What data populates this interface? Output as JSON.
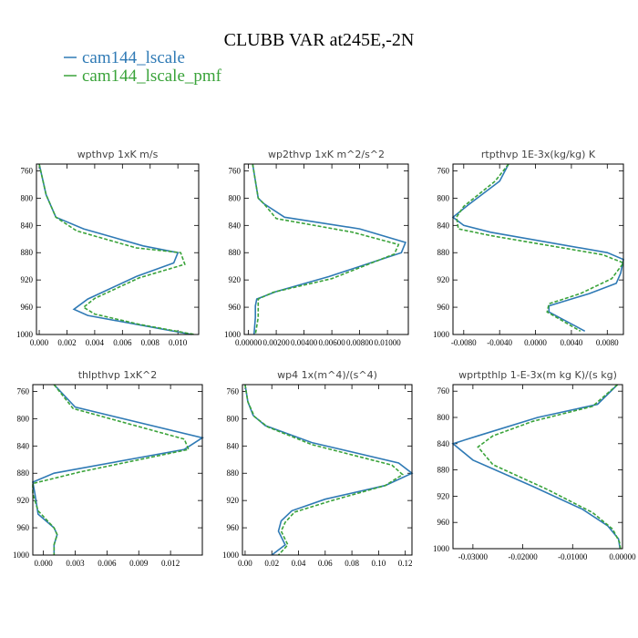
{
  "figure": {
    "title": "CLUBB VAR at245E,-2N",
    "legend": [
      {
        "label": "cam144_lscale",
        "color": "#2f7ab5",
        "style": "solid"
      },
      {
        "label": "cam144_lscale_pmf",
        "color": "#3aa33a",
        "style": "dashed"
      }
    ]
  },
  "chart_data": [
    {
      "type": "line",
      "title": "wpthvp  1xK m/s",
      "ylim": [
        1000,
        750
      ],
      "xlim": [
        -0.0002,
        0.0115
      ],
      "x_ticks": [
        "0.000",
        "0.002",
        "0.004",
        "0.006",
        "0.008",
        "0.010"
      ],
      "x_tick_values": [
        0,
        0.002,
        0.004,
        0.006,
        0.008,
        0.01
      ],
      "y_ticks": [
        "760",
        "800",
        "840",
        "880",
        "920",
        "960",
        "1000"
      ],
      "y_tick_values": [
        760,
        800,
        840,
        880,
        920,
        960,
        1000
      ],
      "series": [
        {
          "name": "cam144_lscale",
          "points": [
            [
              0.0,
              750
            ],
            [
              0.0005,
              795
            ],
            [
              0.0012,
              828
            ],
            [
              0.0032,
              845
            ],
            [
              0.0075,
              870
            ],
            [
              0.01,
              880
            ],
            [
              0.0097,
              895
            ],
            [
              0.007,
              915
            ],
            [
              0.0035,
              948
            ],
            [
              0.0025,
              963
            ],
            [
              0.0035,
              972
            ],
            [
              0.007,
              985
            ],
            [
              0.011,
              1000
            ]
          ]
        },
        {
          "name": "cam144_lscale_pmf",
          "points": [
            [
              0.0,
              750
            ],
            [
              0.0005,
              795
            ],
            [
              0.0012,
              828
            ],
            [
              0.0027,
              848
            ],
            [
              0.007,
              873
            ],
            [
              0.0102,
              880
            ],
            [
              0.0105,
              897
            ],
            [
              0.0072,
              917
            ],
            [
              0.004,
              947
            ],
            [
              0.0032,
              960
            ],
            [
              0.004,
              970
            ],
            [
              0.0072,
              985
            ],
            [
              0.0112,
              1000
            ]
          ]
        }
      ]
    },
    {
      "type": "line",
      "title": "wp2thvp  1xK m^2/s^2",
      "ylim": [
        1000,
        750
      ],
      "xlim": [
        -0.0003,
        0.0115
      ],
      "x_ticks": [
        "0.00000",
        "0.00200",
        "0.00400",
        "0.00600",
        "0.00800",
        "0.01000"
      ],
      "x_tick_values": [
        0,
        0.002,
        0.004,
        0.006,
        0.008,
        0.01
      ],
      "y_ticks": [
        "760",
        "800",
        "840",
        "880",
        "920",
        "960",
        "1000"
      ],
      "y_tick_values": [
        760,
        800,
        840,
        880,
        920,
        960,
        1000
      ],
      "series": [
        {
          "name": "cam144_lscale",
          "points": [
            [
              0.0003,
              750
            ],
            [
              0.0007,
              800
            ],
            [
              0.0011,
              808
            ],
            [
              0.0026,
              828
            ],
            [
              0.008,
              845
            ],
            [
              0.0113,
              865
            ],
            [
              0.011,
              880
            ],
            [
              0.0058,
              915
            ],
            [
              0.002,
              937
            ],
            [
              0.0006,
              948
            ],
            [
              0.0005,
              958
            ],
            [
              0.0005,
              975
            ],
            [
              0.0004,
              1000
            ]
          ]
        },
        {
          "name": "cam144_lscale_pmf",
          "points": [
            [
              0.0003,
              750
            ],
            [
              0.0007,
              800
            ],
            [
              0.0011,
              808
            ],
            [
              0.002,
              830
            ],
            [
              0.0075,
              850
            ],
            [
              0.0108,
              868
            ],
            [
              0.0105,
              882
            ],
            [
              0.006,
              918
            ],
            [
              0.0018,
              938
            ],
            [
              0.0007,
              948
            ],
            [
              0.0007,
              958
            ],
            [
              0.0007,
              975
            ],
            [
              0.0005,
              1000
            ]
          ]
        }
      ]
    },
    {
      "type": "line",
      "title": "rtpthvp  1E-3x(kg/kg) K",
      "ylim": [
        1000,
        750
      ],
      "xlim": [
        -0.0092,
        0.0098
      ],
      "x_ticks": [
        "-0.0080",
        "-0.0040",
        "0.0000",
        "0.0040",
        "0.0080"
      ],
      "x_tick_values": [
        -0.008,
        -0.004,
        0,
        0.004,
        0.008
      ],
      "y_ticks": [
        "760",
        "800",
        "840",
        "880",
        "920",
        "960",
        "1000"
      ],
      "y_tick_values": [
        760,
        800,
        840,
        880,
        920,
        960,
        1000
      ],
      "series": [
        {
          "name": "cam144_lscale",
          "points": [
            [
              -0.003,
              750
            ],
            [
              -0.004,
              775
            ],
            [
              -0.0075,
              810
            ],
            [
              -0.0092,
              828
            ],
            [
              -0.008,
              840
            ],
            [
              -0.005,
              850
            ],
            [
              0.008,
              880
            ],
            [
              0.0098,
              890
            ],
            [
              0.0095,
              910
            ],
            [
              0.009,
              925
            ],
            [
              0.006,
              940
            ],
            [
              0.0015,
              958
            ],
            [
              0.0015,
              967
            ],
            [
              0.0055,
              995
            ]
          ]
        },
        {
          "name": "cam144_lscale_pmf",
          "points": [
            [
              -0.003,
              750
            ],
            [
              -0.0045,
              775
            ],
            [
              -0.008,
              812
            ],
            [
              -0.0088,
              828
            ],
            [
              -0.0086,
              845
            ],
            [
              -0.005,
              855
            ],
            [
              0.0075,
              883
            ],
            [
              0.0098,
              895
            ],
            [
              0.0085,
              918
            ],
            [
              0.005,
              940
            ],
            [
              0.0015,
              955
            ],
            [
              0.0013,
              967
            ],
            [
              0.005,
              995
            ]
          ]
        }
      ]
    },
    {
      "type": "line",
      "title": "thlpthvp  1xK^2",
      "ylim": [
        1000,
        750
      ],
      "xlim": [
        -0.001,
        0.015
      ],
      "x_ticks": [
        "0.000",
        "0.003",
        "0.006",
        "0.009",
        "0.012"
      ],
      "x_tick_values": [
        0,
        0.003,
        0.006,
        0.009,
        0.012
      ],
      "y_ticks": [
        "760",
        "800",
        "840",
        "880",
        "920",
        "960",
        "1000"
      ],
      "y_tick_values": [
        760,
        800,
        840,
        880,
        920,
        960,
        1000
      ],
      "series": [
        {
          "name": "cam144_lscale",
          "points": [
            [
              0.001,
              750
            ],
            [
              0.003,
              783
            ],
            [
              0.015,
              828
            ],
            [
              0.0133,
              845
            ],
            [
              0.001,
              880
            ],
            [
              -0.001,
              893
            ],
            [
              -0.0008,
              910
            ],
            [
              -0.0005,
              940
            ],
            [
              0.001,
              960
            ],
            [
              0.0013,
              970
            ],
            [
              0.001,
              985
            ],
            [
              0.001,
              1000
            ]
          ]
        },
        {
          "name": "cam144_lscale_pmf",
          "points": [
            [
              0.001,
              750
            ],
            [
              0.0028,
              785
            ],
            [
              0.0133,
              830
            ],
            [
              0.0137,
              845
            ],
            [
              0.0035,
              878
            ],
            [
              -0.001,
              895
            ],
            [
              -0.001,
              910
            ],
            [
              -0.0005,
              935
            ],
            [
              0.001,
              960
            ],
            [
              0.0013,
              970
            ],
            [
              0.001,
              985
            ],
            [
              0.001,
              1000
            ]
          ]
        }
      ]
    },
    {
      "type": "line",
      "title": "wp4  1x(m^4)/(s^4)",
      "ylim": [
        1000,
        750
      ],
      "xlim": [
        -0.002,
        0.125
      ],
      "x_ticks": [
        "0.00",
        "0.02",
        "0.04",
        "0.06",
        "0.08",
        "0.10",
        "0.12"
      ],
      "x_tick_values": [
        0,
        0.02,
        0.04,
        0.06,
        0.08,
        0.1,
        0.12
      ],
      "y_ticks": [
        "760",
        "800",
        "840",
        "880",
        "920",
        "960",
        "1000"
      ],
      "y_tick_values": [
        760,
        800,
        840,
        880,
        920,
        960,
        1000
      ],
      "series": [
        {
          "name": "cam144_lscale",
          "points": [
            [
              0.0,
              750
            ],
            [
              0.002,
              775
            ],
            [
              0.006,
              795
            ],
            [
              0.015,
              810
            ],
            [
              0.05,
              835
            ],
            [
              0.115,
              865
            ],
            [
              0.125,
              880
            ],
            [
              0.105,
              898
            ],
            [
              0.06,
              918
            ],
            [
              0.035,
              935
            ],
            [
              0.027,
              950
            ],
            [
              0.025,
              965
            ],
            [
              0.03,
              985
            ],
            [
              0.02,
              1000
            ]
          ]
        },
        {
          "name": "cam144_lscale_pmf",
          "points": [
            [
              0.0,
              750
            ],
            [
              0.002,
              775
            ],
            [
              0.007,
              797
            ],
            [
              0.017,
              812
            ],
            [
              0.05,
              838
            ],
            [
              0.11,
              868
            ],
            [
              0.118,
              882
            ],
            [
              0.105,
              898
            ],
            [
              0.065,
              920
            ],
            [
              0.037,
              937
            ],
            [
              0.03,
              952
            ],
            [
              0.027,
              965
            ],
            [
              0.032,
              985
            ],
            [
              0.025,
              1000
            ]
          ]
        }
      ]
    },
    {
      "type": "line",
      "title": "wprtpthlp  1-E-3x(m kg K)/(s kg)",
      "ylim": [
        1000,
        750
      ],
      "xlim": [
        -0.034,
        0.0
      ],
      "x_ticks": [
        "-0.03000",
        "-0.02000",
        "-0.01000",
        "0.00000"
      ],
      "x_tick_values": [
        -0.03,
        -0.02,
        -0.01,
        0
      ],
      "y_ticks": [
        "760",
        "800",
        "840",
        "880",
        "920",
        "960",
        "1000"
      ],
      "y_tick_values": [
        760,
        800,
        840,
        880,
        920,
        960,
        1000
      ],
      "series": [
        {
          "name": "cam144_lscale",
          "points": [
            [
              -0.001,
              750
            ],
            [
              -0.005,
              780
            ],
            [
              -0.017,
              800
            ],
            [
              -0.029,
              828
            ],
            [
              -0.034,
              840
            ],
            [
              -0.03,
              865
            ],
            [
              -0.018,
              905
            ],
            [
              -0.008,
              940
            ],
            [
              -0.003,
              965
            ],
            [
              -0.0008,
              985
            ],
            [
              -0.0005,
              1000
            ]
          ]
        },
        {
          "name": "cam144_lscale_pmf",
          "points": [
            [
              -0.001,
              750
            ],
            [
              -0.006,
              783
            ],
            [
              -0.018,
              806
            ],
            [
              -0.026,
              828
            ],
            [
              -0.029,
              845
            ],
            [
              -0.026,
              872
            ],
            [
              -0.015,
              910
            ],
            [
              -0.006,
              945
            ],
            [
              -0.002,
              970
            ],
            [
              -0.0006,
              990
            ],
            [
              -0.0004,
              1000
            ]
          ]
        }
      ]
    }
  ]
}
